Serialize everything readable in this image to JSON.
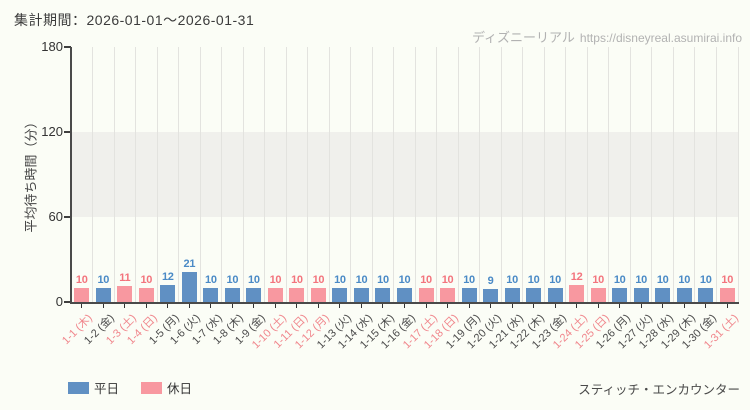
{
  "header": {
    "period": "集計期間：2026-01-01～2026-01-31"
  },
  "watermark": {
    "site": "ディズニーリアル",
    "url": "https://disneyreal.asumirai.info"
  },
  "legend": [
    {
      "label": "平日",
      "type": "weekday"
    },
    {
      "label": "休日",
      "type": "holiday"
    }
  ],
  "footer": {
    "attraction": "スティッチ・エンカウンター"
  },
  "chart_data": {
    "type": "bar",
    "title": "集計期間：2026-01-01～2026-01-31",
    "xlabel": "",
    "ylabel": "平均待ち時間（分）",
    "ylim": [
      0,
      180
    ],
    "yticks": [
      0,
      60,
      120,
      180
    ],
    "highlight_band": {
      "from": 60,
      "to": 120
    },
    "grid": "vertical",
    "legend_position": "bottom-left",
    "categories": [
      "1-1 (木)",
      "1-2 (金)",
      "1-3 (土)",
      "1-4 (日)",
      "1-5 (月)",
      "1-6 (火)",
      "1-7 (水)",
      "1-8 (木)",
      "1-9 (金)",
      "1-10 (土)",
      "1-11 (日)",
      "1-12 (月)",
      "1-13 (火)",
      "1-14 (水)",
      "1-15 (木)",
      "1-16 (金)",
      "1-17 (土)",
      "1-18 (日)",
      "1-19 (月)",
      "1-20 (火)",
      "1-21 (水)",
      "1-22 (木)",
      "1-23 (金)",
      "1-24 (土)",
      "1-25 (日)",
      "1-26 (月)",
      "1-27 (火)",
      "1-28 (水)",
      "1-29 (木)",
      "1-30 (金)",
      "1-31 (土)"
    ],
    "values": [
      10,
      10,
      11,
      10,
      12,
      21,
      10,
      10,
      10,
      10,
      10,
      10,
      10,
      10,
      10,
      10,
      10,
      10,
      10,
      9,
      10,
      10,
      10,
      12,
      10,
      10,
      10,
      10,
      10,
      10,
      10
    ],
    "day_type": [
      "holiday",
      "weekday",
      "holiday",
      "holiday",
      "weekday",
      "weekday",
      "weekday",
      "weekday",
      "weekday",
      "holiday",
      "holiday",
      "holiday",
      "weekday",
      "weekday",
      "weekday",
      "weekday",
      "holiday",
      "holiday",
      "weekday",
      "weekday",
      "weekday",
      "weekday",
      "weekday",
      "holiday",
      "holiday",
      "weekday",
      "weekday",
      "weekday",
      "weekday",
      "weekday",
      "holiday"
    ],
    "colors": {
      "weekday_bar": "#6090c3",
      "holiday_bar": "#f898a0",
      "weekday_value_label": "#4a8ac6",
      "holiday_value_label": "#f3747d",
      "weekday_tick_label": "#4a4a4a",
      "holiday_tick_label": "#f0868c"
    }
  }
}
